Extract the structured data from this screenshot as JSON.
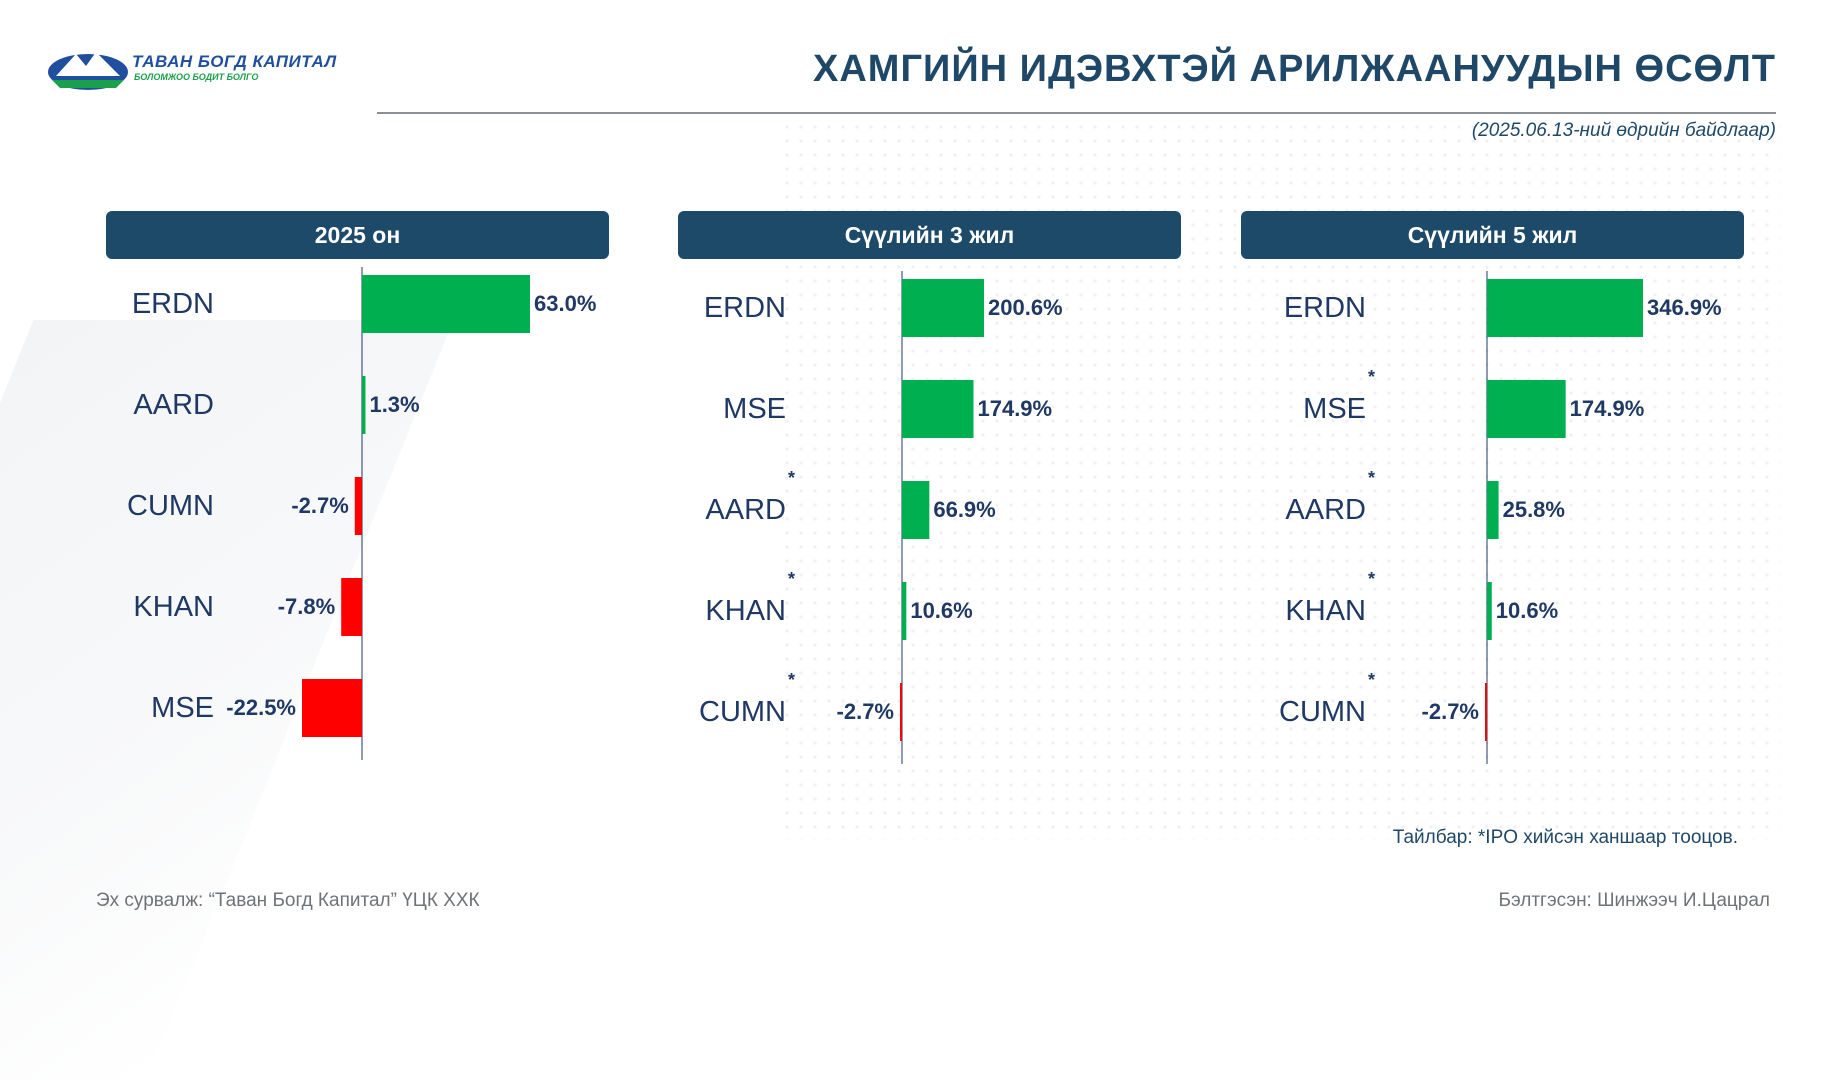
{
  "brand": {
    "name": "ТАВАН БОГД КАПИТАЛ",
    "tagline": "БОЛОМЖОО БОДИТ БОЛГО",
    "colors": {
      "primary": "#1f4f9e",
      "green": "#1a9f4a",
      "header": "#1e4a6a"
    }
  },
  "title": "ХАМГИЙН ИДЭВХТЭЙ АРИЛЖААНУУДЫН ӨСӨЛТ",
  "subtitle": "(2025.06.13-ний өдрийн байдлаар)",
  "note": "Тайлбар: *IPO хийсэн ханшаар тооцов.",
  "source": "Эх сурвалж: “Таван Богд Капитал” ҮЦК ХХК",
  "prepared": "Бэлтгэсэн: Шинжээч И.Цацрал",
  "colors": {
    "positive": "#00b050",
    "negative": "#ff0000",
    "value_text": "#1f3864",
    "category_text": "#1f3864"
  },
  "chart_data": [
    {
      "type": "bar",
      "orientation": "horizontal",
      "title": "2025 он",
      "categories": [
        "ERDN",
        "AARD",
        "CUMN",
        "KHAN",
        "MSE"
      ],
      "values": [
        63.0,
        1.3,
        -2.7,
        -7.8,
        -22.5
      ],
      "labels": [
        "63.0%",
        "1.3%",
        "-2.7%",
        "-7.8%",
        "-22.5%"
      ],
      "ipo_marked": [
        false,
        false,
        false,
        false,
        false
      ],
      "unit": "%"
    },
    {
      "type": "bar",
      "orientation": "horizontal",
      "title": "Сүүлийн 3 жил",
      "categories": [
        "ERDN",
        "MSE",
        "AARD",
        "KHAN",
        "CUMN"
      ],
      "values": [
        200.6,
        174.9,
        66.9,
        10.6,
        -2.7
      ],
      "labels": [
        "200.6%",
        "174.9%",
        "66.9%",
        "10.6%",
        "-2.7%"
      ],
      "ipo_marked": [
        false,
        false,
        true,
        true,
        true
      ],
      "unit": "%"
    },
    {
      "type": "bar",
      "orientation": "horizontal",
      "title": "Сүүлийн 5 жил",
      "categories": [
        "ERDN",
        "MSE",
        "AARD",
        "KHAN",
        "CUMN"
      ],
      "values": [
        346.9,
        174.9,
        25.8,
        10.6,
        -2.7
      ],
      "labels": [
        "346.9%",
        "174.9%",
        "25.8%",
        "10.6%",
        "-2.7%"
      ],
      "ipo_marked": [
        false,
        true,
        true,
        true,
        true
      ],
      "unit": "%"
    }
  ]
}
